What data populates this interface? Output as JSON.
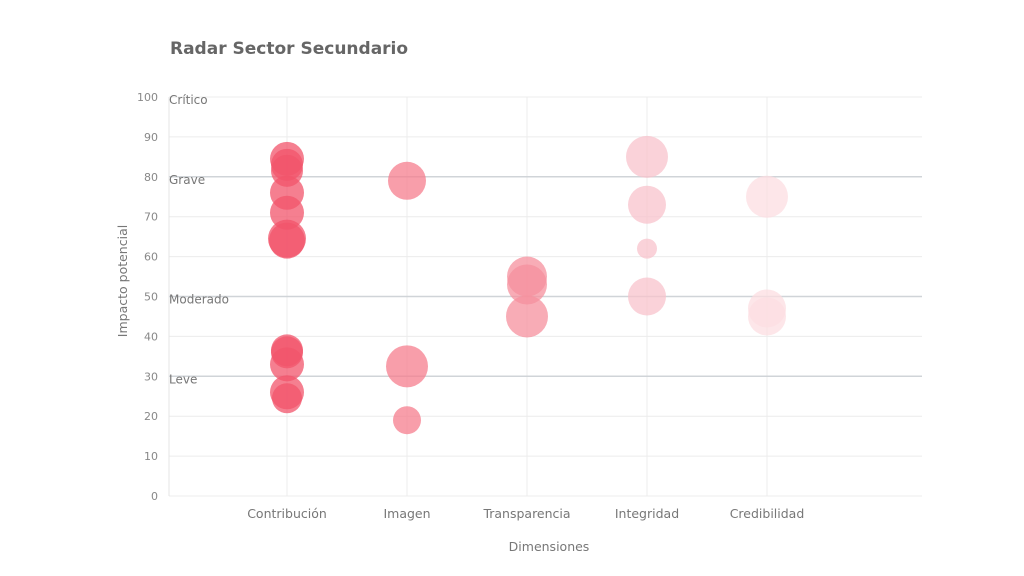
{
  "chart_data": {
    "type": "scatter",
    "subtype": "bubble",
    "title": "Radar Sector Secundario",
    "xlabel": "Dimensiones",
    "ylabel": "Impacto potencial",
    "ylim": [
      0,
      100
    ],
    "yticks": [
      0,
      10,
      20,
      30,
      40,
      50,
      60,
      70,
      80,
      90,
      100
    ],
    "categories": [
      "Contribución",
      "Imagen",
      "Transparencia",
      "Integridad",
      "Credibilidad"
    ],
    "grid": true,
    "zones": [
      {
        "label": "Crítico",
        "y": 100
      },
      {
        "label": "Grave",
        "y": 80
      },
      {
        "label": "Moderado",
        "y": 50
      },
      {
        "label": "Leve",
        "y": 30
      }
    ],
    "series": [
      {
        "name": "Contribución",
        "color": "#f2546b",
        "points": [
          {
            "y": 84.5,
            "size": 17
          },
          {
            "y": 83,
            "size": 16
          },
          {
            "y": 81.5,
            "size": 16
          },
          {
            "y": 76,
            "size": 17
          },
          {
            "y": 71,
            "size": 17
          },
          {
            "y": 64.5,
            "size": 19
          },
          {
            "y": 64,
            "size": 18
          },
          {
            "y": 36.5,
            "size": 16
          },
          {
            "y": 36,
            "size": 16
          },
          {
            "y": 33,
            "size": 17
          },
          {
            "y": 26,
            "size": 17
          },
          {
            "y": 24.5,
            "size": 15
          }
        ]
      },
      {
        "name": "Imagen",
        "color": "#f57e8e",
        "points": [
          {
            "y": 79,
            "size": 19
          },
          {
            "y": 32.5,
            "size": 21
          },
          {
            "y": 19,
            "size": 14
          }
        ]
      },
      {
        "name": "Transparencia",
        "color": "#f5909d",
        "points": [
          {
            "y": 55,
            "size": 20
          },
          {
            "y": 53,
            "size": 20
          },
          {
            "y": 45,
            "size": 21
          }
        ]
      },
      {
        "name": "Integridad",
        "color": "#f8c3cc",
        "points": [
          {
            "y": 85,
            "size": 21
          },
          {
            "y": 73,
            "size": 19
          },
          {
            "y": 62,
            "size": 10
          },
          {
            "y": 50,
            "size": 19
          }
        ]
      },
      {
        "name": "Credibilidad",
        "color": "#fcdde2",
        "points": [
          {
            "y": 75,
            "size": 21
          },
          {
            "y": 47,
            "size": 19
          },
          {
            "y": 45,
            "size": 19
          }
        ]
      }
    ]
  }
}
